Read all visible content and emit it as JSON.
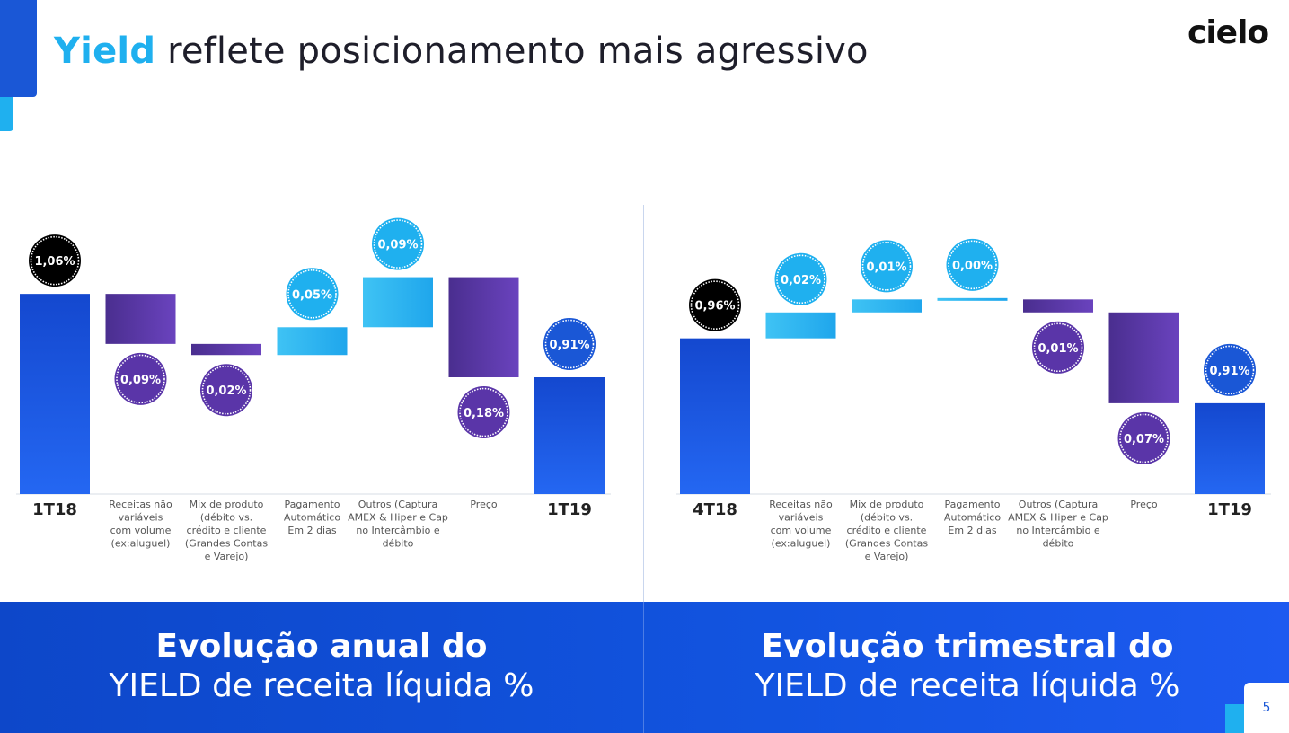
{
  "title": {
    "highlight": "Yield",
    "rest": " reflete posicionamento mais agressivo"
  },
  "logo": "cielo",
  "page_number": "5",
  "captions": [
    {
      "line1": "Evolução anual do",
      "line2": "YIELD de receita líquida %"
    },
    {
      "line1": "Evolução trimestral do",
      "line2": "YIELD de receita líquida %"
    }
  ],
  "colors": {
    "dark_blue": "#1a57d6",
    "light_blue": "#1fb0ef",
    "purple": "#5a35a8",
    "black": "#000000"
  },
  "chart_data": [
    {
      "type": "bar",
      "subtype": "waterfall",
      "categories": [
        "1T18",
        "Receitas não variáveis com volume (ex:aluguel)",
        "Mix de produto (débito vs. crédito e cliente (Grandes Contas e Varejo)",
        "Pagamento Automático Em 2 dias",
        "Outros (Captura AMEX & Hiper e Cap no Intercâmbio e débito",
        "Preço",
        "1T19"
      ],
      "category_lines": [
        [
          "1T18"
        ],
        [
          "Receitas não",
          "variáveis",
          "com volume",
          "(ex:aluguel)"
        ],
        [
          "Mix de produto",
          "(débito vs.",
          "crédito e cliente",
          "(Grandes Contas",
          "e Varejo)"
        ],
        [
          "Pagamento",
          "Automático",
          "Em 2 dias"
        ],
        [
          "Outros (Captura",
          "AMEX & Hiper e Cap",
          "no Intercâmbio e",
          "débito"
        ],
        [
          "Preço"
        ],
        [
          "1T19"
        ]
      ],
      "steps": [
        {
          "kind": "total",
          "value": 1.06,
          "label": "1,06%"
        },
        {
          "kind": "decrease",
          "value": 0.09,
          "label": "0,09%"
        },
        {
          "kind": "decrease",
          "value": 0.02,
          "label": "0,02%"
        },
        {
          "kind": "increase",
          "value": 0.05,
          "label": "0,05%"
        },
        {
          "kind": "increase",
          "value": 0.09,
          "label": "0,09%"
        },
        {
          "kind": "decrease",
          "value": 0.18,
          "label": "0,18%"
        },
        {
          "kind": "total",
          "value": 0.91,
          "label": "0,91%"
        }
      ],
      "ylim": [
        0.7,
        1.12
      ]
    },
    {
      "type": "bar",
      "subtype": "waterfall",
      "categories": [
        "4T18",
        "Receitas não variáveis com volume (ex:aluguel)",
        "Mix de produto (débito vs. crédito e cliente (Grandes Contas e Varejo)",
        "Pagamento Automático Em 2 dias",
        "Outros (Captura AMEX & Hiper e Cap no Intercâmbio e débito",
        "Preço",
        "1T19"
      ],
      "category_lines": [
        [
          "4T18"
        ],
        [
          "Receitas não",
          "variáveis",
          "com volume",
          "(ex:aluguel)"
        ],
        [
          "Mix de produto",
          "(débito vs.",
          "crédito e cliente",
          "(Grandes Contas",
          "e Varejo)"
        ],
        [
          "Pagamento",
          "Automático",
          "Em 2 dias"
        ],
        [
          "Outros (Captura",
          "AMEX & Hiper e Cap",
          "no Intercâmbio e",
          "débito"
        ],
        [
          "Preço"
        ],
        [
          "1T19"
        ]
      ],
      "steps": [
        {
          "kind": "total",
          "value": 0.96,
          "label": "0,96%"
        },
        {
          "kind": "increase",
          "value": 0.02,
          "label": "0,02%"
        },
        {
          "kind": "increase",
          "value": 0.01,
          "label": "0,01%"
        },
        {
          "kind": "increase",
          "value": 0.0,
          "label": "0,00%"
        },
        {
          "kind": "decrease",
          "value": 0.01,
          "label": "0,01%"
        },
        {
          "kind": "decrease",
          "value": 0.07,
          "label": "0,07%"
        },
        {
          "kind": "total",
          "value": 0.91,
          "label": "0,91%"
        }
      ],
      "ylim": [
        0.84,
        1.02
      ]
    }
  ]
}
